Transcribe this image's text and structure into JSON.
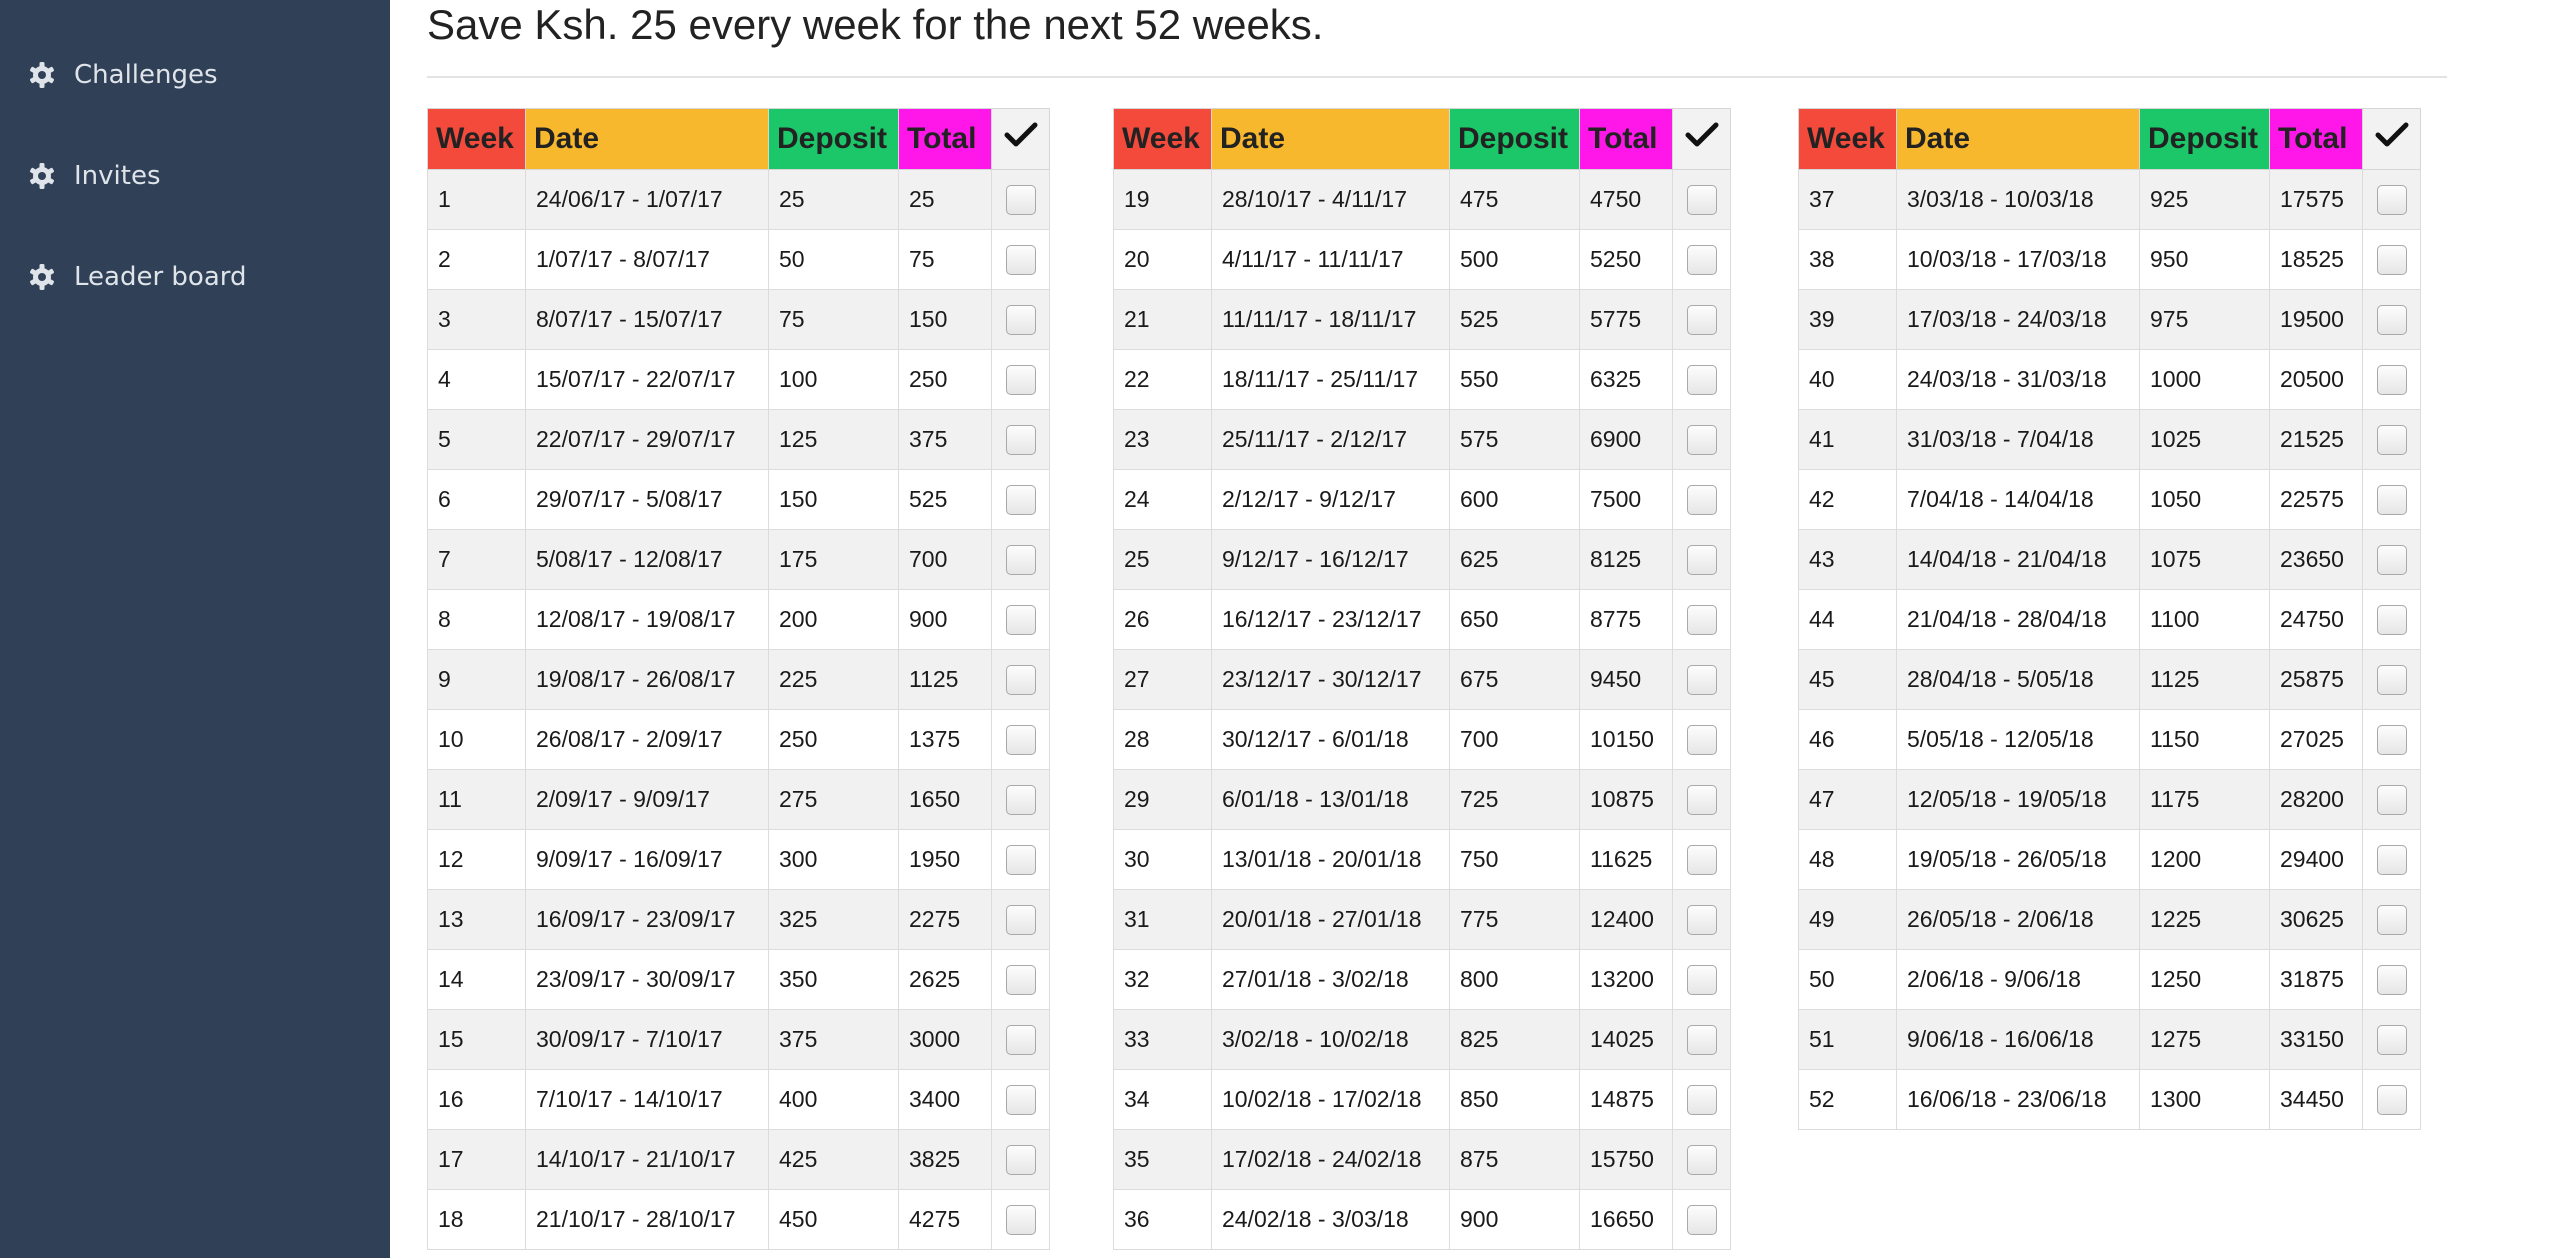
{
  "sidebar": {
    "items": [
      {
        "label": "Challenges",
        "icon": "gear-icon"
      },
      {
        "label": "Invites",
        "icon": "gear-icon"
      },
      {
        "label": "Leader board",
        "icon": "gear-icon"
      }
    ]
  },
  "main": {
    "title": "Save Ksh. 25 every week for the next 52 weeks."
  },
  "table": {
    "headers": {
      "week": "Week",
      "date": "Date",
      "deposit": "Deposit",
      "total": "Total",
      "check": "✓"
    },
    "colors": {
      "week": "#f44a3c",
      "date": "#f8b82e",
      "deposit": "#1cc76a",
      "total": "#ff17e9",
      "check": "#f2f2f2"
    }
  },
  "rows": [
    {
      "week": "1",
      "date": "24/06/17 - 1/07/17",
      "deposit": "25",
      "total": "25"
    },
    {
      "week": "2",
      "date": "1/07/17 - 8/07/17",
      "deposit": "50",
      "total": "75"
    },
    {
      "week": "3",
      "date": "8/07/17 - 15/07/17",
      "deposit": "75",
      "total": "150"
    },
    {
      "week": "4",
      "date": "15/07/17 - 22/07/17",
      "deposit": "100",
      "total": "250"
    },
    {
      "week": "5",
      "date": "22/07/17 - 29/07/17",
      "deposit": "125",
      "total": "375"
    },
    {
      "week": "6",
      "date": "29/07/17 - 5/08/17",
      "deposit": "150",
      "total": "525"
    },
    {
      "week": "7",
      "date": "5/08/17 - 12/08/17",
      "deposit": "175",
      "total": "700"
    },
    {
      "week": "8",
      "date": "12/08/17 - 19/08/17",
      "deposit": "200",
      "total": "900"
    },
    {
      "week": "9",
      "date": "19/08/17 - 26/08/17",
      "deposit": "225",
      "total": "1125"
    },
    {
      "week": "10",
      "date": "26/08/17 - 2/09/17",
      "deposit": "250",
      "total": "1375"
    },
    {
      "week": "11",
      "date": "2/09/17 - 9/09/17",
      "deposit": "275",
      "total": "1650"
    },
    {
      "week": "12",
      "date": "9/09/17 - 16/09/17",
      "deposit": "300",
      "total": "1950"
    },
    {
      "week": "13",
      "date": "16/09/17 - 23/09/17",
      "deposit": "325",
      "total": "2275"
    },
    {
      "week": "14",
      "date": "23/09/17 - 30/09/17",
      "deposit": "350",
      "total": "2625"
    },
    {
      "week": "15",
      "date": "30/09/17 - 7/10/17",
      "deposit": "375",
      "total": "3000"
    },
    {
      "week": "16",
      "date": "7/10/17 - 14/10/17",
      "deposit": "400",
      "total": "3400"
    },
    {
      "week": "17",
      "date": "14/10/17 - 21/10/17",
      "deposit": "425",
      "total": "3825"
    },
    {
      "week": "18",
      "date": "21/10/17 - 28/10/17",
      "deposit": "450",
      "total": "4275"
    },
    {
      "week": "19",
      "date": "28/10/17 - 4/11/17",
      "deposit": "475",
      "total": "4750"
    },
    {
      "week": "20",
      "date": "4/11/17 - 11/11/17",
      "deposit": "500",
      "total": "5250"
    },
    {
      "week": "21",
      "date": "11/11/17 - 18/11/17",
      "deposit": "525",
      "total": "5775"
    },
    {
      "week": "22",
      "date": "18/11/17 - 25/11/17",
      "deposit": "550",
      "total": "6325"
    },
    {
      "week": "23",
      "date": "25/11/17 - 2/12/17",
      "deposit": "575",
      "total": "6900"
    },
    {
      "week": "24",
      "date": "2/12/17 - 9/12/17",
      "deposit": "600",
      "total": "7500"
    },
    {
      "week": "25",
      "date": "9/12/17 - 16/12/17",
      "deposit": "625",
      "total": "8125"
    },
    {
      "week": "26",
      "date": "16/12/17 - 23/12/17",
      "deposit": "650",
      "total": "8775"
    },
    {
      "week": "27",
      "date": "23/12/17 - 30/12/17",
      "deposit": "675",
      "total": "9450"
    },
    {
      "week": "28",
      "date": "30/12/17 - 6/01/18",
      "deposit": "700",
      "total": "10150"
    },
    {
      "week": "29",
      "date": "6/01/18 - 13/01/18",
      "deposit": "725",
      "total": "10875"
    },
    {
      "week": "30",
      "date": "13/01/18 - 20/01/18",
      "deposit": "750",
      "total": "11625"
    },
    {
      "week": "31",
      "date": "20/01/18 - 27/01/18",
      "deposit": "775",
      "total": "12400"
    },
    {
      "week": "32",
      "date": "27/01/18 - 3/02/18",
      "deposit": "800",
      "total": "13200"
    },
    {
      "week": "33",
      "date": "3/02/18 - 10/02/18",
      "deposit": "825",
      "total": "14025"
    },
    {
      "week": "34",
      "date": "10/02/18 - 17/02/18",
      "deposit": "850",
      "total": "14875"
    },
    {
      "week": "35",
      "date": "17/02/18 - 24/02/18",
      "deposit": "875",
      "total": "15750"
    },
    {
      "week": "36",
      "date": "24/02/18 - 3/03/18",
      "deposit": "900",
      "total": "16650"
    },
    {
      "week": "37",
      "date": "3/03/18 - 10/03/18",
      "deposit": "925",
      "total": "17575"
    },
    {
      "week": "38",
      "date": "10/03/18 - 17/03/18",
      "deposit": "950",
      "total": "18525"
    },
    {
      "week": "39",
      "date": "17/03/18 - 24/03/18",
      "deposit": "975",
      "total": "19500"
    },
    {
      "week": "40",
      "date": "24/03/18 - 31/03/18",
      "deposit": "1000",
      "total": "20500"
    },
    {
      "week": "41",
      "date": "31/03/18 - 7/04/18",
      "deposit": "1025",
      "total": "21525"
    },
    {
      "week": "42",
      "date": "7/04/18 - 14/04/18",
      "deposit": "1050",
      "total": "22575"
    },
    {
      "week": "43",
      "date": "14/04/18 - 21/04/18",
      "deposit": "1075",
      "total": "23650"
    },
    {
      "week": "44",
      "date": "21/04/18 - 28/04/18",
      "deposit": "1100",
      "total": "24750"
    },
    {
      "week": "45",
      "date": "28/04/18 - 5/05/18",
      "deposit": "1125",
      "total": "25875"
    },
    {
      "week": "46",
      "date": "5/05/18 - 12/05/18",
      "deposit": "1150",
      "total": "27025"
    },
    {
      "week": "47",
      "date": "12/05/18 - 19/05/18",
      "deposit": "1175",
      "total": "28200"
    },
    {
      "week": "48",
      "date": "19/05/18 - 26/05/18",
      "deposit": "1200",
      "total": "29400"
    },
    {
      "week": "49",
      "date": "26/05/18 - 2/06/18",
      "deposit": "1225",
      "total": "30625"
    },
    {
      "week": "50",
      "date": "2/06/18 - 9/06/18",
      "deposit": "1250",
      "total": "31875"
    },
    {
      "week": "51",
      "date": "9/06/18 - 16/06/18",
      "deposit": "1275",
      "total": "33150"
    },
    {
      "week": "52",
      "date": "16/06/18 - 23/06/18",
      "deposit": "1300",
      "total": "34450"
    }
  ]
}
